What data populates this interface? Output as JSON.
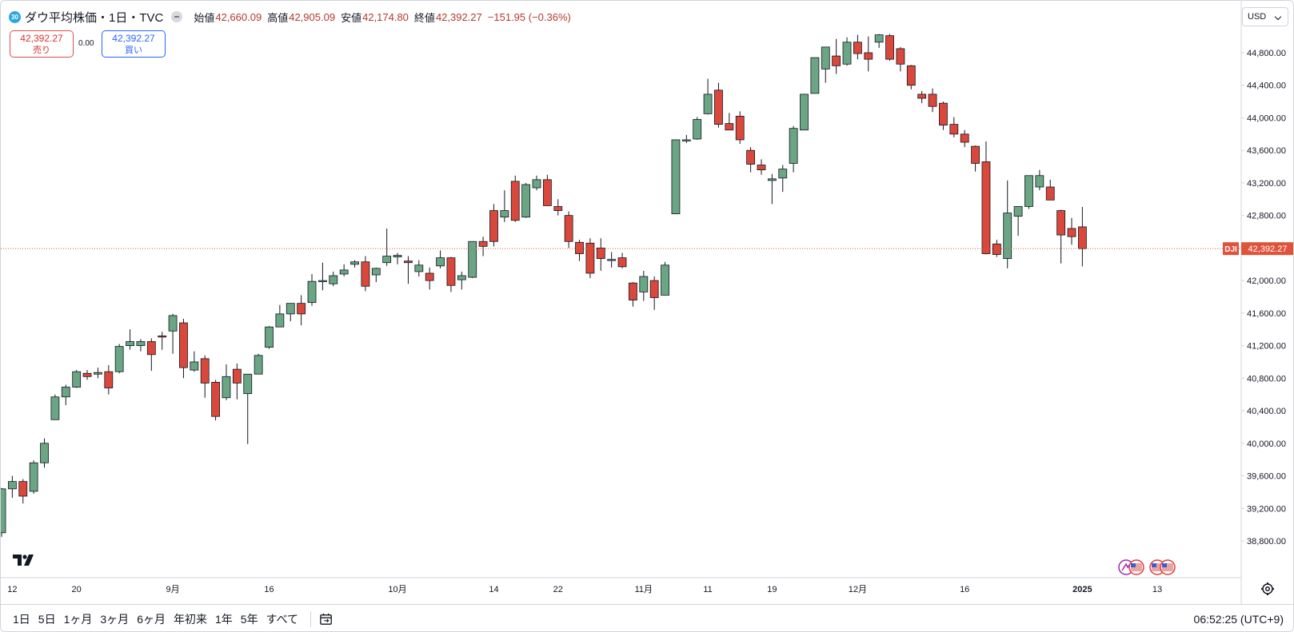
{
  "header": {
    "badge": "30",
    "title": "ダウ平均株価・1日・TVC",
    "ohlc": [
      {
        "label": "始値",
        "value": "42,660.09"
      },
      {
        "label": "高値",
        "value": "42,905.09"
      },
      {
        "label": "安値",
        "value": "42,174.80"
      },
      {
        "label": "終値",
        "value": "42,392.27"
      }
    ],
    "change": "−151.95 (−0.36%)"
  },
  "trade": {
    "sell_price": "42,392.27",
    "sell_label": "売り",
    "buy_price": "42,392.27",
    "buy_label": "買い",
    "spread": "0.00"
  },
  "currency": "USD",
  "last_price": {
    "symbol": "DJI",
    "value": "42,392.27",
    "price": 42392.27
  },
  "bottom_bar": {
    "ranges": [
      "1日",
      "5日",
      "1ヶ月",
      "3ヶ月",
      "6ヶ月",
      "年初来",
      "1年",
      "5年",
      "すべて"
    ],
    "clock": "06:52:25 (UTC+9)"
  },
  "icons": [
    "tradingview-logo-icon",
    "settings-gear-icon",
    "calendar-range-icon",
    "us-flag-event-icon",
    "dividend-event-icon"
  ],
  "colors": {
    "up": "#6aa584",
    "down": "#d9483b",
    "last_price": "#e0533b"
  },
  "chart_data": {
    "type": "candlestick",
    "title": "ダウ平均株価・1日・TVC",
    "y_ticks": [
      38800,
      39200,
      39600,
      40000,
      40400,
      40800,
      41200,
      41600,
      42000,
      42400,
      42800,
      43200,
      43600,
      44000,
      44400,
      44800
    ],
    "y_tick_labels": [
      "38,800.00",
      "39,200.00",
      "39,600.00",
      "40,000.00",
      "40,400.00",
      "40,800.00",
      "41,200.00",
      "41,600.00",
      "42,000.00",
      "42,400.00",
      "42,800.00",
      "43,200.00",
      "43,600.00",
      "44,000.00",
      "44,400.00",
      "44,800.00"
    ],
    "x_labels": [
      {
        "label": "12",
        "index": 1
      },
      {
        "label": "20",
        "index": 7
      },
      {
        "label": "9月",
        "index": 16
      },
      {
        "label": "16",
        "index": 25
      },
      {
        "label": "10月",
        "index": 37
      },
      {
        "label": "14",
        "index": 46
      },
      {
        "label": "22",
        "index": 52
      },
      {
        "label": "11月",
        "index": 60
      },
      {
        "label": "11",
        "index": 66
      },
      {
        "label": "19",
        "index": 72
      },
      {
        "label": "12月",
        "index": 80
      },
      {
        "label": "16",
        "index": 90
      },
      {
        "label": "2025",
        "index": 101
      },
      {
        "label": "13",
        "index": 108
      }
    ],
    "candles": [
      {
        "o": 38900,
        "h": 39450,
        "l": 38850,
        "c": 39440
      },
      {
        "o": 39440,
        "h": 39600,
        "l": 39330,
        "c": 39530
      },
      {
        "o": 39530,
        "h": 39560,
        "l": 39260,
        "c": 39350
      },
      {
        "o": 39410,
        "h": 39790,
        "l": 39380,
        "c": 39760
      },
      {
        "o": 39760,
        "h": 40060,
        "l": 39700,
        "c": 40000
      },
      {
        "o": 40290,
        "h": 40600,
        "l": 40290,
        "c": 40570
      },
      {
        "o": 40570,
        "h": 40720,
        "l": 40470,
        "c": 40690
      },
      {
        "o": 40690,
        "h": 40900,
        "l": 40680,
        "c": 40880
      },
      {
        "o": 40860,
        "h": 40900,
        "l": 40780,
        "c": 40820
      },
      {
        "o": 40850,
        "h": 40930,
        "l": 40800,
        "c": 40870
      },
      {
        "o": 40880,
        "h": 40960,
        "l": 40600,
        "c": 40680
      },
      {
        "o": 40880,
        "h": 41220,
        "l": 40860,
        "c": 41190
      },
      {
        "o": 41200,
        "h": 41400,
        "l": 41150,
        "c": 41250
      },
      {
        "o": 41200,
        "h": 41280,
        "l": 41130,
        "c": 41250
      },
      {
        "o": 41250,
        "h": 41290,
        "l": 40890,
        "c": 41090
      },
      {
        "o": 41320,
        "h": 41370,
        "l": 41150,
        "c": 41310
      },
      {
        "o": 41380,
        "h": 41590,
        "l": 41100,
        "c": 41570
      },
      {
        "o": 41480,
        "h": 41530,
        "l": 40800,
        "c": 40930
      },
      {
        "o": 40900,
        "h": 41130,
        "l": 40880,
        "c": 41000
      },
      {
        "o": 41040,
        "h": 41080,
        "l": 40560,
        "c": 40740
      },
      {
        "o": 40750,
        "h": 40780,
        "l": 40280,
        "c": 40330
      },
      {
        "o": 40560,
        "h": 40970,
        "l": 40530,
        "c": 40820
      },
      {
        "o": 40910,
        "h": 40980,
        "l": 40540,
        "c": 40740
      },
      {
        "o": 40610,
        "h": 40840,
        "l": 39990,
        "c": 40850
      },
      {
        "o": 40850,
        "h": 41100,
        "l": 40850,
        "c": 41080
      },
      {
        "o": 41180,
        "h": 41440,
        "l": 41160,
        "c": 41430
      },
      {
        "o": 41430,
        "h": 41700,
        "l": 41430,
        "c": 41590
      },
      {
        "o": 41590,
        "h": 41710,
        "l": 41500,
        "c": 41720
      },
      {
        "o": 41720,
        "h": 41820,
        "l": 41450,
        "c": 41590
      },
      {
        "o": 41730,
        "h": 42080,
        "l": 41690,
        "c": 41990
      },
      {
        "o": 41990,
        "h": 42220,
        "l": 41880,
        "c": 42000
      },
      {
        "o": 41960,
        "h": 42110,
        "l": 41930,
        "c": 42060
      },
      {
        "o": 42080,
        "h": 42200,
        "l": 42050,
        "c": 42130
      },
      {
        "o": 42200,
        "h": 42250,
        "l": 42160,
        "c": 42230
      },
      {
        "o": 42230,
        "h": 42300,
        "l": 41870,
        "c": 41930
      },
      {
        "o": 42070,
        "h": 42160,
        "l": 41980,
        "c": 42150
      },
      {
        "o": 42220,
        "h": 42640,
        "l": 42180,
        "c": 42300
      },
      {
        "o": 42290,
        "h": 42340,
        "l": 42200,
        "c": 42310
      },
      {
        "o": 42240,
        "h": 42300,
        "l": 41960,
        "c": 42220
      },
      {
        "o": 42110,
        "h": 42250,
        "l": 42050,
        "c": 42190
      },
      {
        "o": 42090,
        "h": 42160,
        "l": 41890,
        "c": 42000
      },
      {
        "o": 42180,
        "h": 42370,
        "l": 42150,
        "c": 42280
      },
      {
        "o": 42280,
        "h": 42290,
        "l": 41860,
        "c": 41940
      },
      {
        "o": 42010,
        "h": 42110,
        "l": 41890,
        "c": 42060
      },
      {
        "o": 42040,
        "h": 42480,
        "l": 42030,
        "c": 42480
      },
      {
        "o": 42480,
        "h": 42540,
        "l": 42300,
        "c": 42420
      },
      {
        "o": 42860,
        "h": 42940,
        "l": 42420,
        "c": 42480
      },
      {
        "o": 42780,
        "h": 43110,
        "l": 42720,
        "c": 42860
      },
      {
        "o": 43220,
        "h": 43290,
        "l": 42720,
        "c": 42740
      },
      {
        "o": 42780,
        "h": 43200,
        "l": 42770,
        "c": 43180
      },
      {
        "o": 43140,
        "h": 43290,
        "l": 43110,
        "c": 43240
      },
      {
        "o": 43240,
        "h": 43300,
        "l": 42920,
        "c": 42920
      },
      {
        "o": 42910,
        "h": 43000,
        "l": 42800,
        "c": 42860
      },
      {
        "o": 42800,
        "h": 42850,
        "l": 42400,
        "c": 42480
      },
      {
        "o": 42470,
        "h": 42500,
        "l": 42240,
        "c": 42330
      },
      {
        "o": 42460,
        "h": 42520,
        "l": 42030,
        "c": 42090
      },
      {
        "o": 42400,
        "h": 42520,
        "l": 42120,
        "c": 42270
      },
      {
        "o": 42250,
        "h": 42350,
        "l": 42160,
        "c": 42260
      },
      {
        "o": 42280,
        "h": 42340,
        "l": 42150,
        "c": 42170
      },
      {
        "o": 41970,
        "h": 41980,
        "l": 41680,
        "c": 41760
      },
      {
        "o": 41860,
        "h": 42120,
        "l": 41750,
        "c": 42050
      },
      {
        "o": 42000,
        "h": 42050,
        "l": 41640,
        "c": 41790
      },
      {
        "o": 41820,
        "h": 42230,
        "l": 41820,
        "c": 42190
      },
      {
        "o": 42820,
        "h": 43730,
        "l": 42820,
        "c": 43730
      },
      {
        "o": 43720,
        "h": 43790,
        "l": 43690,
        "c": 43730
      },
      {
        "o": 43740,
        "h": 44010,
        "l": 43730,
        "c": 43980
      },
      {
        "o": 44050,
        "h": 44480,
        "l": 44040,
        "c": 44290
      },
      {
        "o": 44340,
        "h": 44430,
        "l": 43880,
        "c": 43920
      },
      {
        "o": 43930,
        "h": 44060,
        "l": 43860,
        "c": 43850
      },
      {
        "o": 44020,
        "h": 44080,
        "l": 43680,
        "c": 43730
      },
      {
        "o": 43600,
        "h": 43640,
        "l": 43330,
        "c": 43430
      },
      {
        "o": 43420,
        "h": 43490,
        "l": 43300,
        "c": 43360
      },
      {
        "o": 43230,
        "h": 43310,
        "l": 42940,
        "c": 43250
      },
      {
        "o": 43260,
        "h": 43420,
        "l": 43090,
        "c": 43370
      },
      {
        "o": 43440,
        "h": 43900,
        "l": 43330,
        "c": 43870
      },
      {
        "o": 43850,
        "h": 44290,
        "l": 43850,
        "c": 44290
      },
      {
        "o": 44300,
        "h": 44720,
        "l": 44300,
        "c": 44740
      },
      {
        "o": 44600,
        "h": 44820,
        "l": 44430,
        "c": 44870
      },
      {
        "o": 44760,
        "h": 44970,
        "l": 44540,
        "c": 44640
      },
      {
        "o": 44660,
        "h": 44990,
        "l": 44640,
        "c": 44930
      },
      {
        "o": 44930,
        "h": 45020,
        "l": 44720,
        "c": 44790
      },
      {
        "o": 44800,
        "h": 45000,
        "l": 44570,
        "c": 44720
      },
      {
        "o": 44930,
        "h": 45030,
        "l": 44860,
        "c": 45020
      },
      {
        "o": 45010,
        "h": 45030,
        "l": 44700,
        "c": 44720
      },
      {
        "o": 44850,
        "h": 44870,
        "l": 44570,
        "c": 44660
      },
      {
        "o": 44640,
        "h": 44650,
        "l": 44350,
        "c": 44400
      },
      {
        "o": 44290,
        "h": 44330,
        "l": 44180,
        "c": 44240
      },
      {
        "o": 44290,
        "h": 44360,
        "l": 44070,
        "c": 44140
      },
      {
        "o": 44180,
        "h": 44200,
        "l": 43850,
        "c": 43910
      },
      {
        "o": 43920,
        "h": 44010,
        "l": 43760,
        "c": 43800
      },
      {
        "o": 43800,
        "h": 43850,
        "l": 43640,
        "c": 43700
      },
      {
        "o": 43650,
        "h": 43660,
        "l": 43340,
        "c": 43440
      },
      {
        "o": 43460,
        "h": 43710,
        "l": 42320,
        "c": 42330
      },
      {
        "o": 42450,
        "h": 42500,
        "l": 42290,
        "c": 42320
      },
      {
        "o": 42270,
        "h": 43230,
        "l": 42150,
        "c": 42830
      },
      {
        "o": 42790,
        "h": 42910,
        "l": 42550,
        "c": 42910
      },
      {
        "o": 42910,
        "h": 43280,
        "l": 42880,
        "c": 43290
      },
      {
        "o": 43150,
        "h": 43360,
        "l": 43110,
        "c": 43290
      },
      {
        "o": 43150,
        "h": 43240,
        "l": 42990,
        "c": 42990
      },
      {
        "o": 42860,
        "h": 42870,
        "l": 42210,
        "c": 42560
      },
      {
        "o": 42640,
        "h": 42770,
        "l": 42440,
        "c": 42540
      },
      {
        "o": 42660,
        "h": 42905,
        "l": 42175,
        "c": 42392
      }
    ]
  }
}
